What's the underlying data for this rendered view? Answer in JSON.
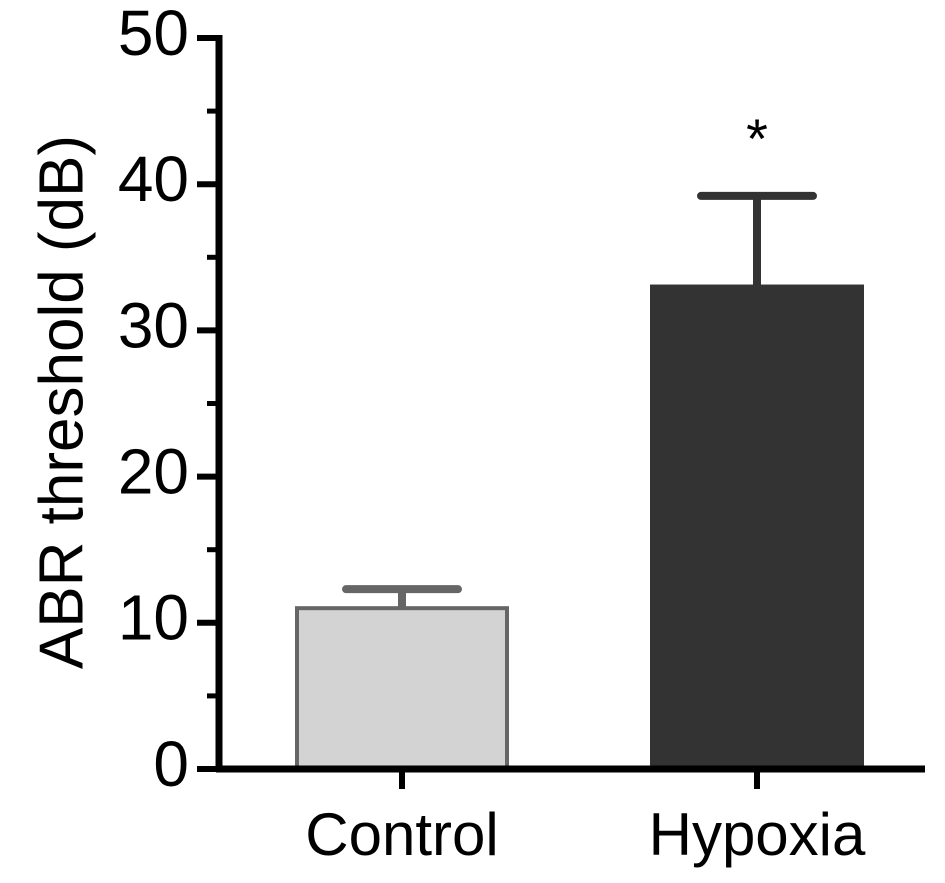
{
  "chart_data": {
    "type": "bar",
    "title": "",
    "xlabel": "",
    "ylabel": "ABR threshold (dB)",
    "categories": [
      "Control",
      "Hypoxia"
    ],
    "values": [
      11,
      33
    ],
    "errors": [
      1.3,
      6.2
    ],
    "significance": [
      "",
      "*"
    ],
    "ylim": [
      0,
      50
    ],
    "yticks": [
      0,
      10,
      20,
      30,
      40,
      50
    ],
    "ytick_labels": [
      "0",
      "10",
      "20",
      "30",
      "40",
      "50"
    ],
    "minor_tick_step": 5,
    "grid": false,
    "legend": "none",
    "colors": {
      "bars": [
        "#d3d3d3",
        "#333333"
      ],
      "bar_edges": [
        "#666666",
        "#333333"
      ],
      "axis": "#000000"
    }
  }
}
